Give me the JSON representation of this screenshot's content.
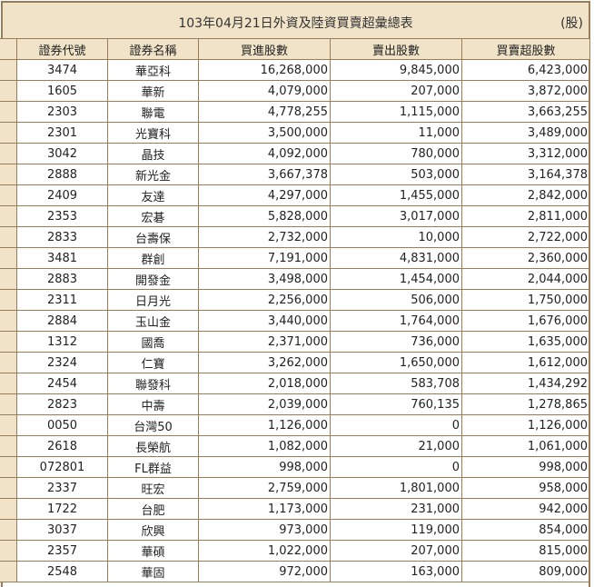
{
  "title": "103年04月21日外資及陸資買賣超彙總表",
  "unit": "(股)",
  "columns": [
    "證券代號",
    "證券名稱",
    "買進股數",
    "賣出股數",
    "買賣超股數"
  ],
  "rows": [
    [
      "3474",
      "華亞科",
      "16,268,000",
      "9,845,000",
      "6,423,000"
    ],
    [
      "1605",
      "華新",
      "4,079,000",
      "207,000",
      "3,872,000"
    ],
    [
      "2303",
      "聯電",
      "4,778,255",
      "1,115,000",
      "3,663,255"
    ],
    [
      "2301",
      "光寶科",
      "3,500,000",
      "11,000",
      "3,489,000"
    ],
    [
      "3042",
      "晶技",
      "4,092,000",
      "780,000",
      "3,312,000"
    ],
    [
      "2888",
      "新光金",
      "3,667,378",
      "503,000",
      "3,164,378"
    ],
    [
      "2409",
      "友達",
      "4,297,000",
      "1,455,000",
      "2,842,000"
    ],
    [
      "2353",
      "宏碁",
      "5,828,000",
      "3,017,000",
      "2,811,000"
    ],
    [
      "2833",
      "台壽保",
      "2,732,000",
      "10,000",
      "2,722,000"
    ],
    [
      "3481",
      "群創",
      "7,191,000",
      "4,831,000",
      "2,360,000"
    ],
    [
      "2883",
      "開發金",
      "3,498,000",
      "1,454,000",
      "2,044,000"
    ],
    [
      "2311",
      "日月光",
      "2,256,000",
      "506,000",
      "1,750,000"
    ],
    [
      "2884",
      "玉山金",
      "3,440,000",
      "1,764,000",
      "1,676,000"
    ],
    [
      "1312",
      "國喬",
      "2,371,000",
      "736,000",
      "1,635,000"
    ],
    [
      "2324",
      "仁寶",
      "3,262,000",
      "1,650,000",
      "1,612,000"
    ],
    [
      "2454",
      "聯發科",
      "2,018,000",
      "583,708",
      "1,434,292"
    ],
    [
      "2823",
      "中壽",
      "2,039,000",
      "760,135",
      "1,278,865"
    ],
    [
      "0050",
      "台灣50",
      "1,126,000",
      "0",
      "1,126,000"
    ],
    [
      "2618",
      "長榮航",
      "1,082,000",
      "21,000",
      "1,061,000"
    ],
    [
      "072801",
      "FL群益",
      "998,000",
      "0",
      "998,000"
    ],
    [
      "2337",
      "旺宏",
      "2,759,000",
      "1,801,000",
      "958,000"
    ],
    [
      "1722",
      "台肥",
      "1,173,000",
      "231,000",
      "942,000"
    ],
    [
      "3037",
      "欣興",
      "973,000",
      "119,000",
      "854,000"
    ],
    [
      "2357",
      "華碩",
      "1,022,000",
      "207,000",
      "815,000"
    ],
    [
      "2548",
      "華固",
      "972,000",
      "163,000",
      "809,000"
    ]
  ]
}
